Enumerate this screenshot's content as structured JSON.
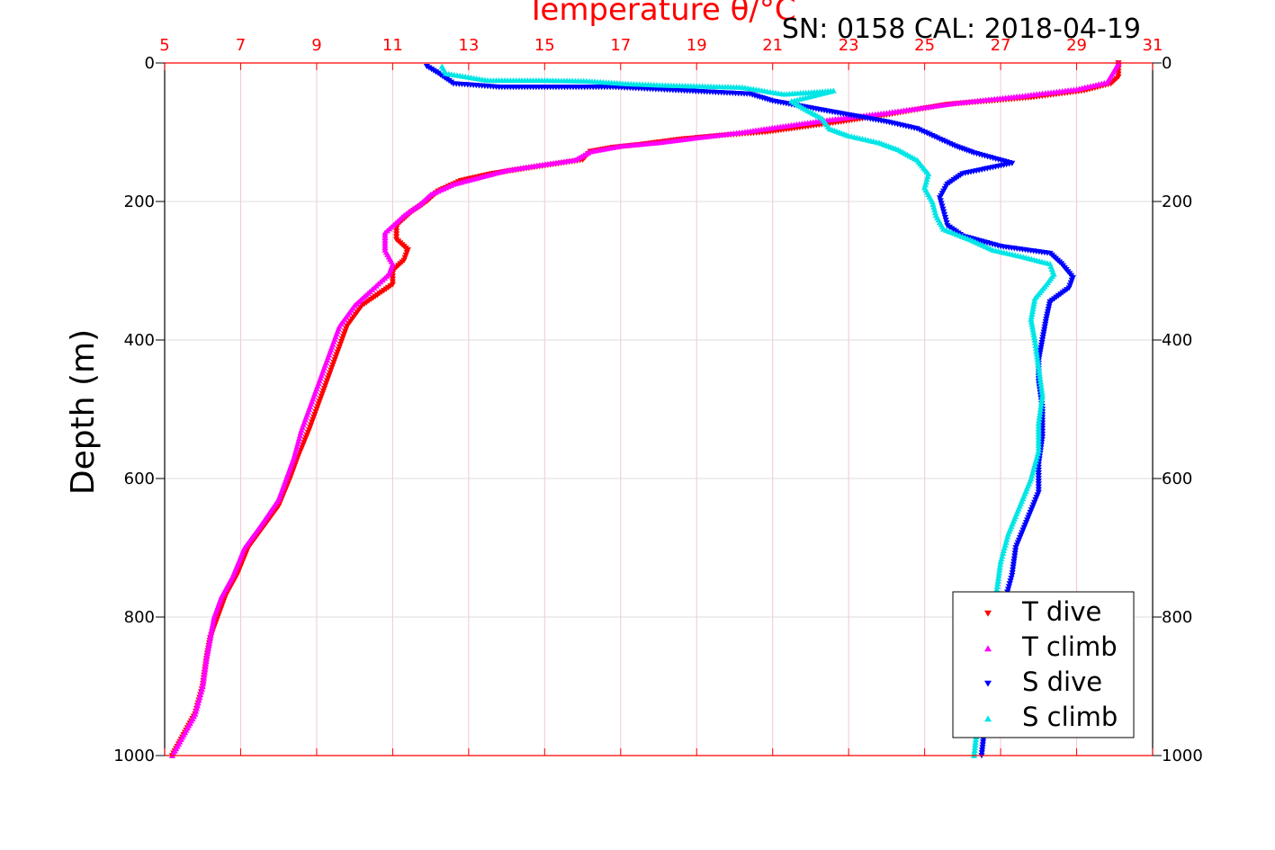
{
  "chart_data": {
    "type": "scatter",
    "title": "SN: 0158  CAL: 2018-04-19",
    "top_axis": {
      "label": "Temperature θ/°C",
      "range": [
        5,
        31
      ],
      "ticks": [
        5,
        7,
        9,
        11,
        13,
        15,
        17,
        19,
        21,
        23,
        25,
        27,
        29,
        31
      ],
      "color": "#ff0000"
    },
    "y_axis": {
      "label": "Depth (m)",
      "range": [
        0,
        1000
      ],
      "reversed": true,
      "ticks": [
        0,
        200,
        400,
        600,
        800,
        1000
      ]
    },
    "right_axis": {
      "ticks": [
        0,
        200,
        400,
        600,
        800,
        1000
      ]
    },
    "grid": true,
    "legend_position": "bottom-right",
    "series": [
      {
        "name": "T dive",
        "color": "#ff0000",
        "marker": "triangle-down",
        "axis": "temperature",
        "points": [
          [
            30.1,
            0
          ],
          [
            30.1,
            8
          ],
          [
            30.1,
            20
          ],
          [
            29.9,
            30
          ],
          [
            29.2,
            40
          ],
          [
            27.8,
            50
          ],
          [
            25.6,
            60
          ],
          [
            24.0,
            75
          ],
          [
            22.8,
            85
          ],
          [
            21.5,
            95
          ],
          [
            20.8,
            100
          ],
          [
            19.6,
            105
          ],
          [
            18.6,
            110
          ],
          [
            17.5,
            118
          ],
          [
            16.8,
            122
          ],
          [
            16.2,
            128
          ],
          [
            16.0,
            140
          ],
          [
            14.8,
            150
          ],
          [
            13.6,
            160
          ],
          [
            12.8,
            170
          ],
          [
            12.2,
            185
          ],
          [
            11.9,
            200
          ],
          [
            11.5,
            215
          ],
          [
            11.1,
            235
          ],
          [
            11.1,
            255
          ],
          [
            11.4,
            270
          ],
          [
            11.3,
            285
          ],
          [
            11.0,
            300
          ],
          [
            11.0,
            320
          ],
          [
            10.6,
            335
          ],
          [
            10.2,
            350
          ],
          [
            9.8,
            380
          ],
          [
            9.6,
            410
          ],
          [
            9.4,
            440
          ],
          [
            9.2,
            470
          ],
          [
            9.0,
            500
          ],
          [
            8.8,
            530
          ],
          [
            8.5,
            570
          ],
          [
            8.3,
            600
          ],
          [
            8.0,
            640
          ],
          [
            7.6,
            670
          ],
          [
            7.2,
            700
          ],
          [
            6.9,
            740
          ],
          [
            6.6,
            770
          ],
          [
            6.4,
            800
          ],
          [
            6.2,
            830
          ],
          [
            6.1,
            860
          ],
          [
            6.0,
            900
          ],
          [
            5.8,
            940
          ],
          [
            5.5,
            970
          ],
          [
            5.2,
            1000
          ]
        ]
      },
      {
        "name": "T climb",
        "color": "#ff00ff",
        "marker": "triangle-up",
        "axis": "temperature",
        "points": [
          [
            30.1,
            0
          ],
          [
            30.0,
            10
          ],
          [
            29.8,
            28
          ],
          [
            29.0,
            38
          ],
          [
            27.5,
            48
          ],
          [
            25.8,
            58
          ],
          [
            24.0,
            72
          ],
          [
            22.5,
            82
          ],
          [
            21.2,
            92
          ],
          [
            20.2,
            100
          ],
          [
            19.0,
            108
          ],
          [
            18.0,
            115
          ],
          [
            17.0,
            120
          ],
          [
            16.2,
            128
          ],
          [
            15.8,
            140
          ],
          [
            14.8,
            148
          ],
          [
            14.0,
            155
          ],
          [
            13.3,
            165
          ],
          [
            12.6,
            175
          ],
          [
            12.0,
            190
          ],
          [
            11.7,
            205
          ],
          [
            11.3,
            220
          ],
          [
            10.8,
            245
          ],
          [
            10.8,
            270
          ],
          [
            11.0,
            290
          ],
          [
            10.9,
            305
          ],
          [
            10.4,
            330
          ],
          [
            10.0,
            350
          ],
          [
            9.6,
            380
          ],
          [
            9.4,
            410
          ],
          [
            9.2,
            440
          ],
          [
            9.0,
            470
          ],
          [
            8.8,
            500
          ],
          [
            8.6,
            530
          ],
          [
            8.4,
            570
          ],
          [
            8.2,
            600
          ],
          [
            8.0,
            630
          ],
          [
            7.5,
            670
          ],
          [
            7.1,
            700
          ],
          [
            6.8,
            740
          ],
          [
            6.5,
            770
          ],
          [
            6.3,
            800
          ],
          [
            6.2,
            830
          ],
          [
            6.1,
            860
          ],
          [
            6.0,
            900
          ],
          [
            5.8,
            940
          ],
          [
            5.5,
            970
          ],
          [
            5.2,
            1000
          ]
        ]
      },
      {
        "name": "S dive",
        "color": "#0000ff",
        "marker": "triangle-down",
        "axis": "temperature",
        "points": [
          [
            11.9,
            5
          ],
          [
            12.2,
            15
          ],
          [
            12.6,
            30
          ],
          [
            13.8,
            35
          ],
          [
            16.8,
            35
          ],
          [
            20.4,
            45
          ],
          [
            21.0,
            55
          ],
          [
            22.0,
            65
          ],
          [
            23.0,
            75
          ],
          [
            24.0,
            85
          ],
          [
            24.8,
            95
          ],
          [
            25.4,
            110
          ],
          [
            25.8,
            120
          ],
          [
            26.3,
            130
          ],
          [
            27.3,
            145
          ],
          [
            26.0,
            160
          ],
          [
            25.6,
            175
          ],
          [
            25.4,
            195
          ],
          [
            25.5,
            215
          ],
          [
            25.6,
            235
          ],
          [
            26.0,
            250
          ],
          [
            27.0,
            265
          ],
          [
            28.3,
            275
          ],
          [
            28.6,
            290
          ],
          [
            28.9,
            310
          ],
          [
            28.8,
            325
          ],
          [
            28.3,
            345
          ],
          [
            28.2,
            370
          ],
          [
            28.1,
            400
          ],
          [
            28.0,
            430
          ],
          [
            28.0,
            460
          ],
          [
            28.1,
            500
          ],
          [
            28.1,
            540
          ],
          [
            28.0,
            580
          ],
          [
            28.0,
            620
          ],
          [
            27.7,
            660
          ],
          [
            27.4,
            700
          ],
          [
            27.3,
            740
          ],
          [
            27.1,
            780
          ],
          [
            26.9,
            820
          ],
          [
            26.8,
            860
          ],
          [
            26.7,
            900
          ],
          [
            26.6,
            950
          ],
          [
            26.5,
            1000
          ]
        ]
      },
      {
        "name": "S climb",
        "color": "#00e5e5",
        "marker": "triangle-up",
        "axis": "temperature",
        "points": [
          [
            12.3,
            5
          ],
          [
            12.4,
            15
          ],
          [
            13.5,
            25
          ],
          [
            15.0,
            25
          ],
          [
            16.1,
            26
          ],
          [
            17.2,
            30
          ],
          [
            18.1,
            32
          ],
          [
            20.2,
            35
          ],
          [
            21.3,
            45
          ],
          [
            22.6,
            40
          ],
          [
            21.5,
            55
          ],
          [
            21.8,
            65
          ],
          [
            22.3,
            80
          ],
          [
            22.5,
            95
          ],
          [
            23.0,
            105
          ],
          [
            23.8,
            115
          ],
          [
            24.3,
            125
          ],
          [
            24.8,
            140
          ],
          [
            25.1,
            160
          ],
          [
            25.0,
            180
          ],
          [
            25.2,
            200
          ],
          [
            25.3,
            220
          ],
          [
            25.5,
            240
          ],
          [
            26.2,
            255
          ],
          [
            26.8,
            270
          ],
          [
            27.6,
            280
          ],
          [
            28.3,
            290
          ],
          [
            28.4,
            305
          ],
          [
            28.2,
            320
          ],
          [
            27.9,
            340
          ],
          [
            27.8,
            370
          ],
          [
            27.9,
            400
          ],
          [
            28.0,
            440
          ],
          [
            28.1,
            480
          ],
          [
            28.0,
            520
          ],
          [
            28.0,
            560
          ],
          [
            27.8,
            600
          ],
          [
            27.5,
            640
          ],
          [
            27.2,
            680
          ],
          [
            27.0,
            720
          ],
          [
            26.9,
            760
          ],
          [
            26.8,
            800
          ],
          [
            26.6,
            850
          ],
          [
            26.5,
            900
          ],
          [
            26.4,
            950
          ],
          [
            26.3,
            1000
          ]
        ]
      }
    ]
  }
}
